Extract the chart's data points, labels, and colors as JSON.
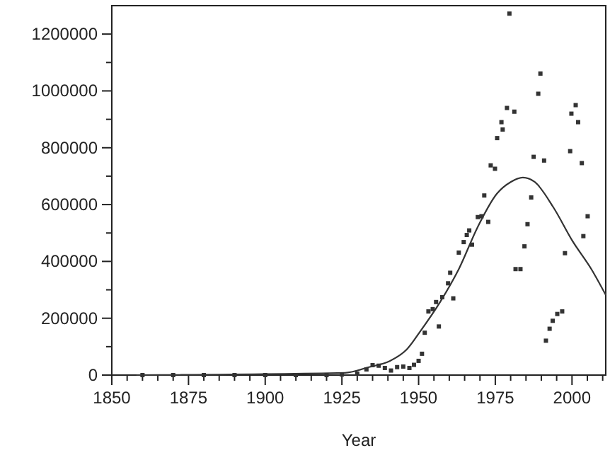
{
  "chart_data": {
    "type": "scatter",
    "xlabel": "Year",
    "xlim": [
      1850,
      2011
    ],
    "ylim": [
      0,
      1300000
    ],
    "xticks": [
      1850,
      {
        "value": 1855,
        "label": null
      },
      {
        "value": 1860,
        "label": null
      },
      {
        "value": 1865,
        "label": null
      },
      {
        "value": 1870,
        "label": null
      },
      1875,
      {
        "value": 1880,
        "label": null
      },
      {
        "value": 1885,
        "label": null
      },
      {
        "value": 1890,
        "label": null
      },
      {
        "value": 1895,
        "label": null
      },
      1900,
      {
        "value": 1905,
        "label": null
      },
      {
        "value": 1910,
        "label": null
      },
      {
        "value": 1915,
        "label": null
      },
      {
        "value": 1920,
        "label": null
      },
      1925,
      {
        "value": 1930,
        "label": null
      },
      {
        "value": 1935,
        "label": null
      },
      {
        "value": 1940,
        "label": null
      },
      {
        "value": 1945,
        "label": null
      },
      1950,
      {
        "value": 1955,
        "label": null
      },
      {
        "value": 1960,
        "label": null
      },
      {
        "value": 1965,
        "label": null
      },
      {
        "value": 1970,
        "label": null
      },
      1975,
      {
        "value": 1980,
        "label": null
      },
      {
        "value": 1985,
        "label": null
      },
      {
        "value": 1990,
        "label": null
      },
      {
        "value": 1995,
        "label": null
      },
      2000,
      {
        "value": 2005,
        "label": null
      },
      {
        "value": 2010,
        "label": null
      }
    ],
    "yticks": [
      0,
      {
        "value": 100000,
        "label": null
      },
      200000,
      {
        "value": 300000,
        "label": null
      },
      400000,
      {
        "value": 500000,
        "label": null
      },
      600000,
      {
        "value": 700000,
        "label": null
      },
      800000,
      {
        "value": 900000,
        "label": null
      },
      1000000,
      {
        "value": 1100000,
        "label": null
      },
      1200000
    ],
    "marker": "square",
    "grid": false,
    "series": [
      {
        "color": "#333333",
        "x": [
          1860,
          1870,
          1880,
          1890,
          1900,
          1910,
          1920,
          1925,
          1930,
          1933,
          1935,
          1937,
          1939,
          1941,
          1943,
          1945,
          1947,
          1948.5,
          1950,
          1951.1,
          1952,
          1953.2,
          1954.6,
          1955.7,
          1956.6,
          1957.7,
          1959.6,
          1960.3,
          1961.3,
          1963.1,
          1964.7,
          1965.7,
          1966.5,
          1967.4,
          1969.3,
          1970.5,
          1971.4,
          1972.7,
          1973.5,
          1974.9,
          1975.6,
          1977,
          1977.4,
          1978.8,
          1979.6,
          1981.2,
          1981.6,
          1983.2,
          1984.5,
          1985.5,
          1986.7,
          1987.5,
          1989,
          1989.7,
          1990.9,
          1991.5,
          1992.7,
          1993.7,
          1995.2,
          1996.8,
          1997.7,
          1999.4,
          1999.8,
          2001.2,
          2002,
          2003.2,
          2003.7,
          2005.1
        ],
        "values": [
          0,
          0,
          0,
          0,
          0,
          0,
          0,
          2000,
          5000,
          20000,
          35000,
          33000,
          25000,
          16000,
          28000,
          30000,
          25000,
          36000,
          50000,
          75000,
          149000,
          224000,
          232000,
          257000,
          171000,
          274000,
          323000,
          360000,
          270000,
          431000,
          468000,
          493000,
          509000,
          459000,
          556000,
          559000,
          632000,
          539000,
          738000,
          726000,
          834000,
          890000,
          864000,
          940000,
          1272000,
          927000,
          373000,
          373000,
          453000,
          531000,
          625000,
          768000,
          990000,
          1061000,
          755000,
          121000,
          163000,
          191000,
          215000,
          224000,
          429000,
          788000,
          920000,
          950000,
          890000,
          746000,
          489000,
          559000
        ]
      },
      {
        "type": "line",
        "marker": "none",
        "color": "#333333",
        "x": [
          1858,
          1926,
          1933.8,
          1940.7,
          1946.2,
          1950.8,
          1957,
          1963.1,
          1969.3,
          1975.5,
          1980.1,
          1984,
          1987.8,
          1994,
          2000.1,
          2006.3,
          2011
        ],
        "values": [
          0,
          8000,
          28000,
          50000,
          91000,
          158000,
          257000,
          373000,
          522000,
          638000,
          680000,
          695000,
          680000,
          589000,
          473000,
          373000,
          282000
        ]
      }
    ]
  }
}
